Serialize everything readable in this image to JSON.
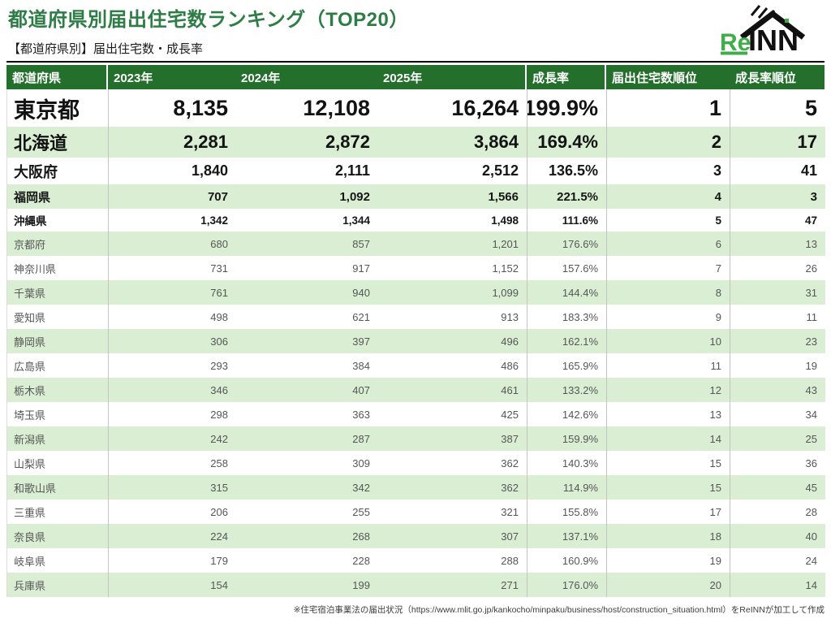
{
  "header": {
    "title": "都道府県別届出住宅数ランキング（TOP20）",
    "subtitle": "【都道府県別】届出住宅数・成長率"
  },
  "logo": {
    "re": "Re",
    "inn": "INN"
  },
  "colors": {
    "title_green": "#2e7d46",
    "table_header_green": "#236f2b",
    "row_light_green": "#d9eed3",
    "logo_green": "#3fae49"
  },
  "footer": {
    "note": "※住宅宿泊事業法の届出状況（https://www.mlit.go.jp/kankocho/minpaku/business/host/construction_situation.html）をReINNが加工して作成"
  },
  "chart_data": {
    "type": "table",
    "title": "都道府県別届出住宅数ランキング（TOP20）",
    "columns": [
      "都道府県",
      "2023年",
      "2024年",
      "2025年",
      "成長率",
      "届出住宅数順位",
      "成長率順位"
    ],
    "rows": [
      [
        "東京都",
        "8,135",
        "12,108",
        "16,264",
        "199.9%",
        "1",
        "5"
      ],
      [
        "北海道",
        "2,281",
        "2,872",
        "3,864",
        "169.4%",
        "2",
        "17"
      ],
      [
        "大阪府",
        "1,840",
        "2,111",
        "2,512",
        "136.5%",
        "3",
        "41"
      ],
      [
        "福岡県",
        "707",
        "1,092",
        "1,566",
        "221.5%",
        "4",
        "3"
      ],
      [
        "沖縄県",
        "1,342",
        "1,344",
        "1,498",
        "111.6%",
        "5",
        "47"
      ],
      [
        "京都府",
        "680",
        "857",
        "1,201",
        "176.6%",
        "6",
        "13"
      ],
      [
        "神奈川県",
        "731",
        "917",
        "1,152",
        "157.6%",
        "7",
        "26"
      ],
      [
        "千葉県",
        "761",
        "940",
        "1,099",
        "144.4%",
        "8",
        "31"
      ],
      [
        "愛知県",
        "498",
        "621",
        "913",
        "183.3%",
        "9",
        "11"
      ],
      [
        "静岡県",
        "306",
        "397",
        "496",
        "162.1%",
        "10",
        "23"
      ],
      [
        "広島県",
        "293",
        "384",
        "486",
        "165.9%",
        "11",
        "19"
      ],
      [
        "栃木県",
        "346",
        "407",
        "461",
        "133.2%",
        "12",
        "43"
      ],
      [
        "埼玉県",
        "298",
        "363",
        "425",
        "142.6%",
        "13",
        "34"
      ],
      [
        "新潟県",
        "242",
        "287",
        "387",
        "159.9%",
        "14",
        "25"
      ],
      [
        "山梨県",
        "258",
        "309",
        "362",
        "140.3%",
        "15",
        "36"
      ],
      [
        "和歌山県",
        "315",
        "342",
        "362",
        "114.9%",
        "15",
        "45"
      ],
      [
        "三重県",
        "206",
        "255",
        "321",
        "155.8%",
        "17",
        "28"
      ],
      [
        "奈良県",
        "224",
        "268",
        "307",
        "137.1%",
        "18",
        "40"
      ],
      [
        "岐阜県",
        "179",
        "228",
        "288",
        "160.9%",
        "19",
        "24"
      ],
      [
        "兵庫県",
        "154",
        "199",
        "271",
        "176.0%",
        "20",
        "14"
      ]
    ]
  }
}
